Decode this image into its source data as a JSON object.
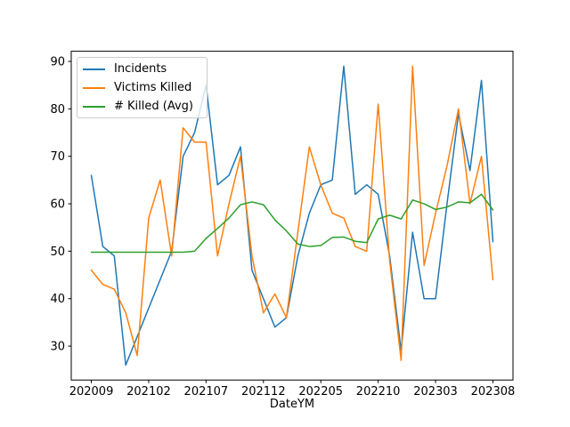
{
  "figure": {
    "background": "#ffffff",
    "axes_border_color": "#000000",
    "tick_color": "#000000"
  },
  "chart_data": {
    "type": "line",
    "title": "",
    "xlabel": "DateYM",
    "ylabel": "",
    "grid": false,
    "legend_position": "upper left",
    "ylim": [
      22.85,
      92.15
    ],
    "yticks": [
      30,
      40,
      50,
      60,
      70,
      80,
      90
    ],
    "xticks": [
      "202009",
      "202102",
      "202107",
      "202112",
      "202205",
      "202210",
      "202303",
      "202308"
    ],
    "x": [
      "202009",
      "202010",
      "202011",
      "202012",
      "202101",
      "202102",
      "202103",
      "202104",
      "202105",
      "202106",
      "202107",
      "202108",
      "202109",
      "202110",
      "202111",
      "202112",
      "202201",
      "202202",
      "202203",
      "202204",
      "202205",
      "202206",
      "202207",
      "202208",
      "202209",
      "202210",
      "202211",
      "202212",
      "202301",
      "202302",
      "202303",
      "202304",
      "202305",
      "202306",
      "202307",
      "202308"
    ],
    "series": [
      {
        "name": "Incidents",
        "color": "#1f77b4",
        "values": [
          66,
          51,
          49,
          26,
          32,
          38,
          44,
          50,
          70,
          75,
          85,
          64,
          66,
          72,
          46,
          40,
          34,
          36,
          49,
          58,
          64,
          65,
          89,
          62,
          64,
          62,
          49,
          29,
          54,
          40,
          40,
          60,
          79,
          67,
          86,
          52
        ]
      },
      {
        "name": "Victims Killed",
        "color": "#ff7f0e",
        "values": [
          46,
          43,
          42,
          37,
          28,
          57,
          65,
          49,
          76,
          73,
          73,
          49,
          60,
          70,
          49,
          37,
          41,
          36,
          54,
          72,
          64,
          58,
          57,
          51,
          50,
          81,
          48,
          27,
          89,
          47,
          58,
          68,
          80,
          60,
          70,
          44
        ]
      },
      {
        "name": "# Killed (Avg)",
        "color": "#2ca02c",
        "values": [
          49.8,
          49.8,
          49.8,
          49.8,
          49.8,
          49.8,
          49.8,
          49.8,
          49.8,
          50,
          52.7,
          54.8,
          57,
          59.8,
          60.4,
          59.8,
          56.6,
          54.3,
          51.5,
          51,
          51.2,
          52.9,
          53,
          52.1,
          51.8,
          56.8,
          57.6,
          56.8,
          60.8,
          60,
          58.8,
          59.3,
          60.4,
          60.2,
          62,
          58.7
        ]
      }
    ]
  }
}
